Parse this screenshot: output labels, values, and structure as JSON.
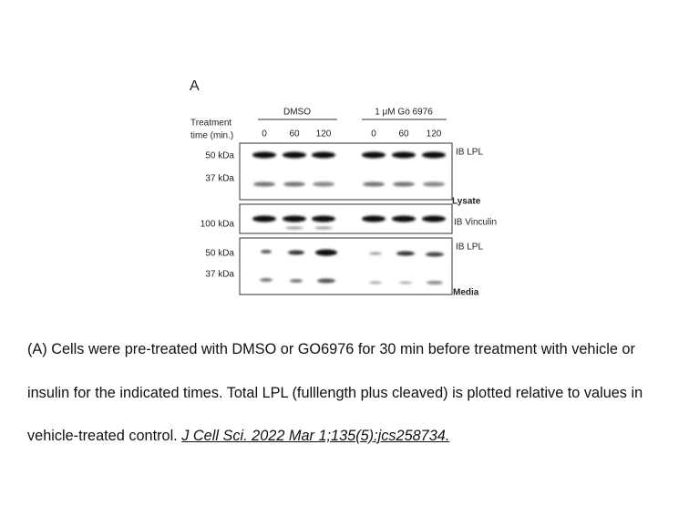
{
  "figure": {
    "panel_label": "A",
    "treatment_label": [
      "Treatment",
      "time (min.)"
    ],
    "groups": [
      "DMSO",
      "1 μM Gö 6976"
    ],
    "lanes": [
      "0",
      "60",
      "120",
      "0",
      "60",
      "120"
    ],
    "blots": [
      {
        "markers": [
          "50 kDa",
          "37 kDa"
        ],
        "antibody": "IB LPL",
        "fraction": "Lysate"
      },
      {
        "markers": [
          "100 kDa"
        ],
        "antibody": "IB Vinculin"
      },
      {
        "markers": [
          "50 kDa",
          "37 kDa"
        ],
        "antibody": "IB LPL",
        "fraction": "Media"
      }
    ]
  },
  "caption": {
    "text": "(A) Cells were pre-treated with DMSO or GO6976 for 30 min before treatment with vehicle or insulin for the indicated times. Total LPL (fulllength plus cleaved) is plotted relative to values in vehicle-treated control.",
    "citation": "J Cell Sci. 2022 Mar 1;135(5):jcs258734."
  }
}
